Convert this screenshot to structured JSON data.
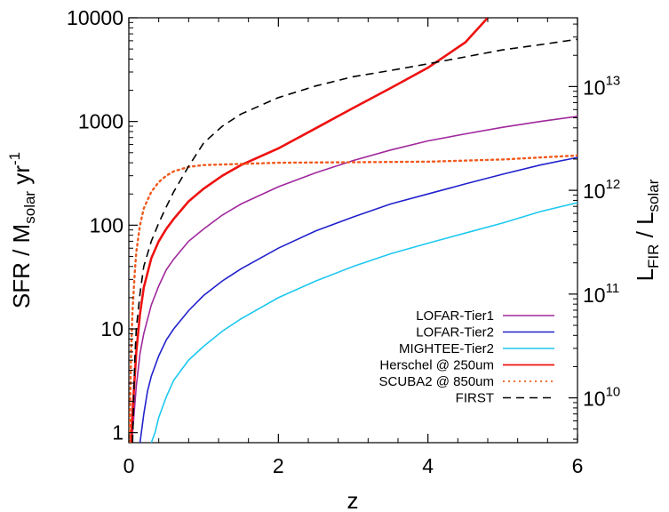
{
  "chart_data": {
    "type": "line",
    "xlabel": "z",
    "ylabel_parts": [
      "SFR / M",
      "solar",
      " yr",
      "-1"
    ],
    "y2label_parts": [
      "L",
      "FIR",
      " / L",
      "solar"
    ],
    "xlim": [
      0,
      6
    ],
    "ylim": [
      0.8,
      10000
    ],
    "yscale": "log",
    "y2lim": [
      3700000000.0,
      46000000000000.0
    ],
    "y2scale": "log",
    "x_ticks": [
      0,
      2,
      4,
      6
    ],
    "x_tick_labels": [
      "0",
      "2",
      "4",
      "6"
    ],
    "y_ticks": [
      1,
      10,
      100,
      1000,
      10000
    ],
    "y_tick_labels": [
      "1",
      "10",
      "100",
      "1000",
      "10000"
    ],
    "y2_ticks": [
      10000000000.0,
      100000000000.0,
      1000000000000.0,
      10000000000000.0
    ],
    "y2_tick_labels": [
      {
        "base": "10",
        "exp": "10"
      },
      {
        "base": "10",
        "exp": "11"
      },
      {
        "base": "10",
        "exp": "12"
      },
      {
        "base": "10",
        "exp": "13"
      }
    ],
    "legend_position": "bottom-right",
    "series": [
      {
        "name": "LOFAR-Tier1",
        "color": "#a0289c",
        "dash": "solid",
        "x": [
          0.02,
          0.05,
          0.1,
          0.15,
          0.2,
          0.3,
          0.4,
          0.5,
          0.6,
          0.8,
          1.0,
          1.25,
          1.5,
          2.0,
          2.5,
          3.0,
          3.5,
          4.0,
          4.5,
          5.0,
          5.5,
          6.0
        ],
        "y": [
          0.8,
          1.0,
          2.8,
          5.8,
          9.0,
          17,
          26,
          37,
          47,
          70,
          92,
          125,
          160,
          235,
          320,
          420,
          530,
          650,
          760,
          880,
          1000,
          1120
        ]
      },
      {
        "name": "LOFAR-Tier2",
        "color": "#2222cc",
        "dash": "solid",
        "x": [
          0.15,
          0.2,
          0.25,
          0.3,
          0.4,
          0.5,
          0.6,
          0.8,
          1.0,
          1.25,
          1.5,
          2.0,
          2.5,
          3.0,
          3.5,
          4.0,
          4.5,
          5.0,
          5.5,
          6.0
        ],
        "y": [
          0.8,
          1.5,
          2.5,
          3.5,
          5.5,
          7.8,
          10,
          15,
          21,
          29,
          38,
          60,
          88,
          120,
          160,
          200,
          250,
          310,
          380,
          450
        ]
      },
      {
        "name": "MIGHTEE-Tier2",
        "color": "#1ec8f0",
        "dash": "solid",
        "x": [
          0.3,
          0.35,
          0.4,
          0.5,
          0.6,
          0.8,
          1.0,
          1.25,
          1.5,
          2.0,
          2.5,
          3.0,
          3.5,
          4.0,
          4.5,
          5.0,
          5.5,
          6.0
        ],
        "y": [
          0.8,
          1.0,
          1.4,
          2.2,
          3.2,
          5.0,
          6.8,
          9.5,
          12.5,
          20,
          29,
          40,
          53,
          67,
          84,
          105,
          135,
          165
        ]
      },
      {
        "name": "Herschel @ 250um",
        "color": "#ee1111",
        "dash": "solid",
        "x": [
          0.03,
          0.05,
          0.1,
          0.15,
          0.2,
          0.3,
          0.4,
          0.5,
          0.6,
          0.8,
          1.0,
          1.25,
          1.5,
          2.0,
          2.5,
          3.0,
          3.5,
          4.0,
          4.5,
          4.8
        ],
        "y": [
          0.8,
          1.6,
          6.0,
          14,
          25,
          48,
          70,
          92,
          115,
          170,
          225,
          300,
          380,
          550,
          860,
          1350,
          2100,
          3300,
          5800,
          10000
        ]
      },
      {
        "name": "SCUBA2 @ 850um",
        "color": "#f05a1e",
        "dash": "dotted",
        "x": [
          0.01,
          0.03,
          0.05,
          0.08,
          0.1,
          0.15,
          0.2,
          0.3,
          0.4,
          0.5,
          0.6,
          0.8,
          1.0,
          1.5,
          2.0,
          3.0,
          4.0,
          5.0,
          6.0
        ],
        "y": [
          0.8,
          6,
          15,
          35,
          55,
          100,
          145,
          210,
          260,
          300,
          330,
          365,
          380,
          390,
          400,
          405,
          410,
          430,
          470
        ]
      },
      {
        "name": "FIRST",
        "color": "#000000",
        "dash": "dashed",
        "x": [
          0.05,
          0.08,
          0.1,
          0.15,
          0.2,
          0.3,
          0.4,
          0.5,
          0.6,
          0.8,
          1.0,
          1.25,
          1.5,
          2.0,
          2.5,
          3.0,
          3.5,
          4.0,
          4.5,
          5.0,
          5.5,
          6.0
        ],
        "y": [
          0.8,
          5,
          10,
          22,
          40,
          70,
          105,
          150,
          210,
          370,
          620,
          900,
          1180,
          1700,
          2200,
          2700,
          3100,
          3600,
          4200,
          4900,
          5500,
          6200
        ]
      }
    ]
  }
}
